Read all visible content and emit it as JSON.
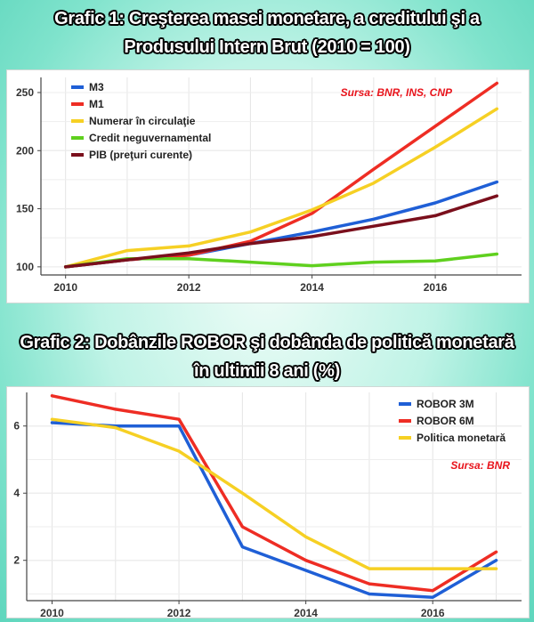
{
  "chart_data": [
    {
      "type": "line",
      "title_line1": "Grafic 1:  Creşterea masei monetare, a creditului şi a",
      "title_line2": "Produsului Intern Brut (2010 = 100)",
      "source": "Sursa: BNR, INS, CNP",
      "x": [
        2010,
        2011,
        2012,
        2013,
        2014,
        2015,
        2016,
        2017
      ],
      "xticks": [
        "2010",
        "2012",
        "2014",
        "2016"
      ],
      "yticks": [
        "100",
        "150",
        "200",
        "250"
      ],
      "xlim": [
        2009.6,
        2017.4
      ],
      "ylim": [
        93,
        263
      ],
      "series": [
        {
          "name": "M3",
          "color": "#1f5fd6",
          "values": [
            100,
            106,
            110,
            120,
            130,
            141,
            155,
            173
          ]
        },
        {
          "name": "M1",
          "color": "#ee2d24",
          "values": [
            100,
            106,
            110,
            122,
            146,
            184,
            221,
            258
          ]
        },
        {
          "name": "Numerar în circulaţie",
          "color": "#f6d024",
          "values": [
            100,
            114,
            118,
            130,
            149,
            172,
            203,
            236
          ]
        },
        {
          "name": "Credit neguvernamental",
          "color": "#5fd01e",
          "values": [
            100,
            107,
            107,
            104,
            101,
            104,
            105,
            111
          ]
        },
        {
          "name": "PIB (preţuri curente)",
          "color": "#7a0f1c",
          "values": [
            100,
            106,
            112,
            120,
            126,
            135,
            144,
            161
          ]
        }
      ]
    },
    {
      "type": "line",
      "title_line1": "Grafic 2:  Dobânzile ROBOR şi dobânda de politică   monetară",
      "title_line2": "în ultimii 8 ani (%)",
      "source": "Sursa: BNR",
      "x": [
        2010,
        2011,
        2012,
        2013,
        2014,
        2015,
        2016,
        2017
      ],
      "xticks": [
        "2010",
        "2012",
        "2014",
        "2016"
      ],
      "yticks": [
        "2",
        "4",
        "6"
      ],
      "xlim": [
        2009.6,
        2017.4
      ],
      "ylim": [
        0.8,
        7.0
      ],
      "series": [
        {
          "name": "ROBOR 3M",
          "color": "#1f5fd6",
          "values": [
            6.1,
            6.0,
            6.0,
            2.4,
            1.7,
            1.0,
            0.9,
            2.0
          ]
        },
        {
          "name": "ROBOR 6M",
          "color": "#ee2d24",
          "values": [
            6.9,
            6.5,
            6.2,
            3.0,
            2.0,
            1.3,
            1.1,
            2.25
          ]
        },
        {
          "name": "Politica monetară",
          "color": "#f6d024",
          "values": [
            6.2,
            5.95,
            5.25,
            4.0,
            2.7,
            1.75,
            1.75,
            1.75
          ]
        }
      ]
    }
  ]
}
